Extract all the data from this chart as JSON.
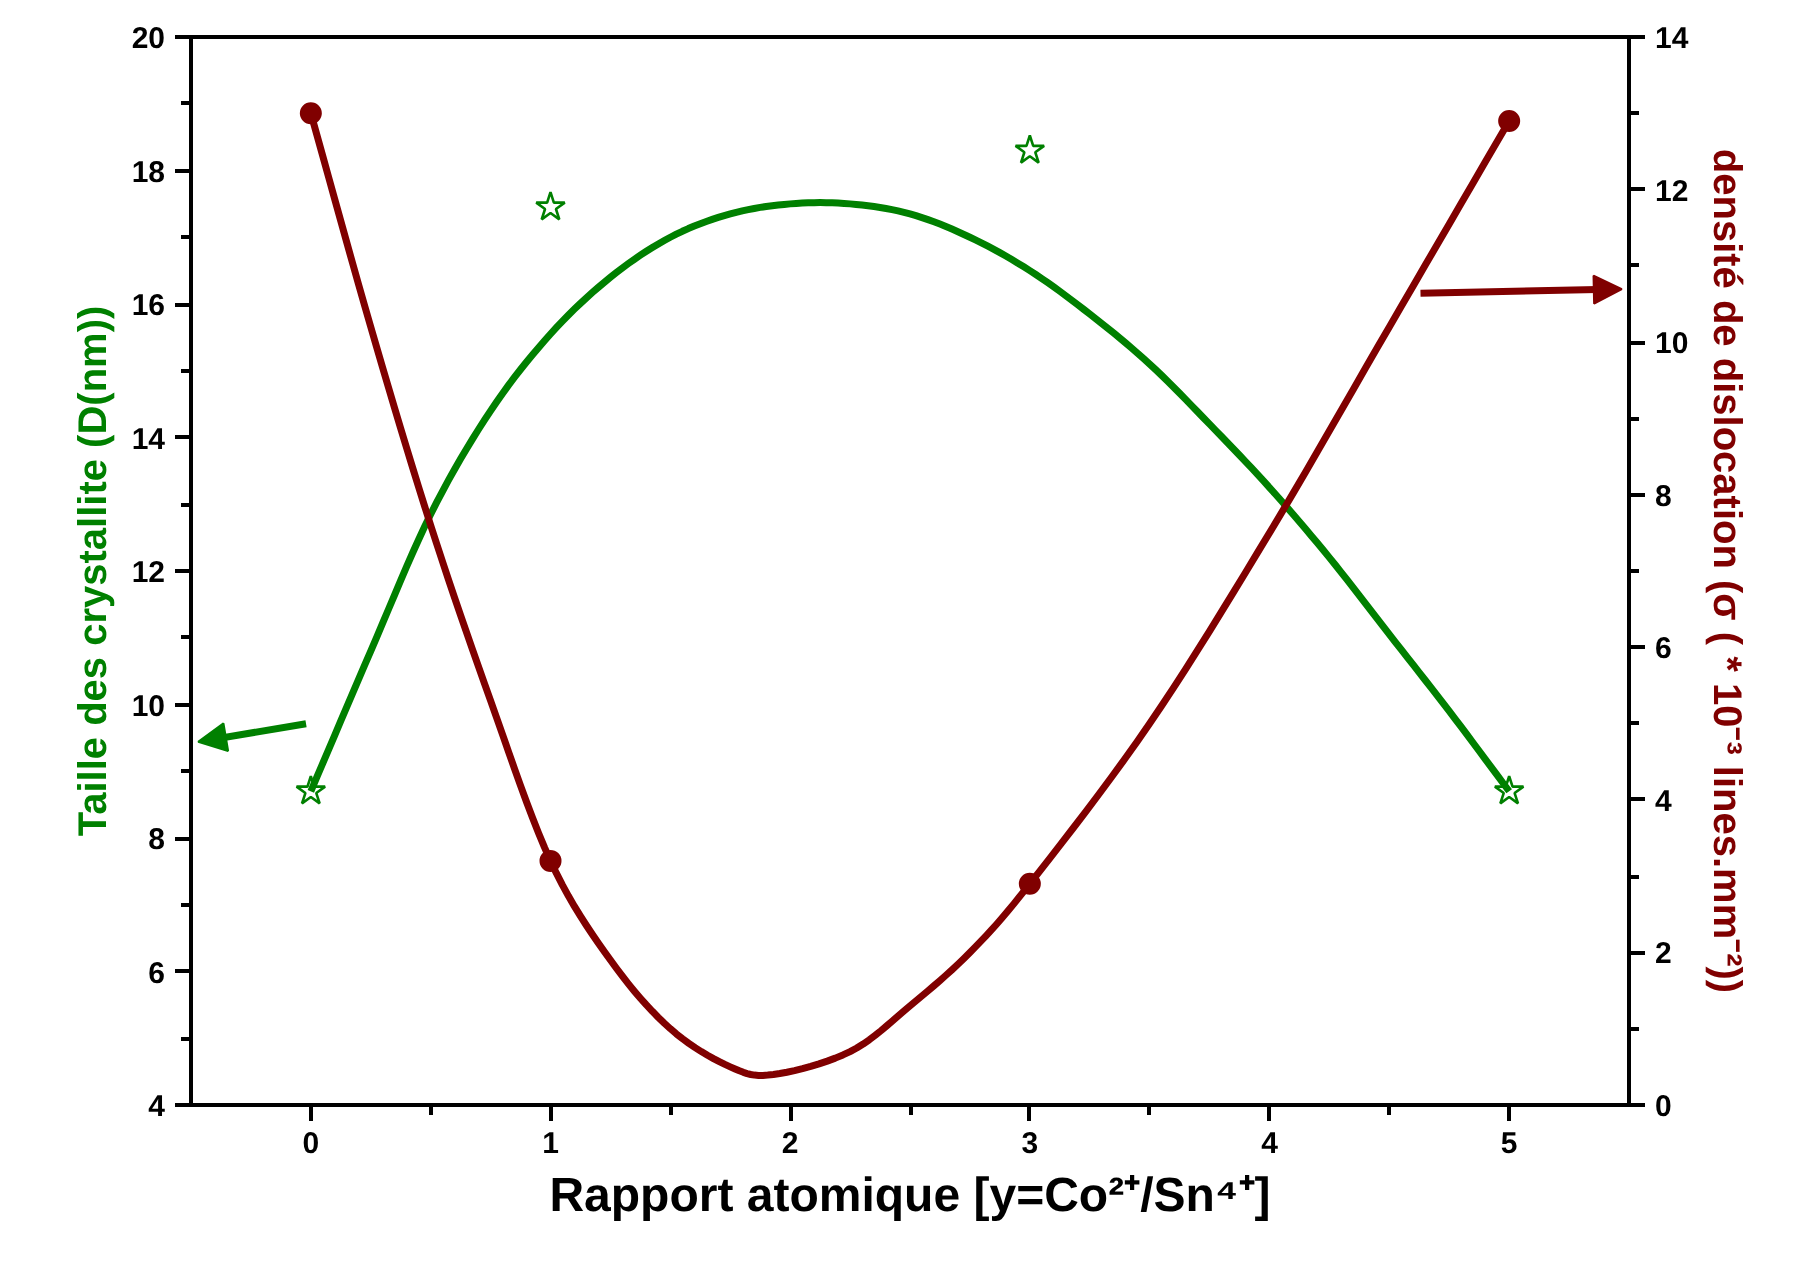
{
  "chart_data": {
    "type": "scatter",
    "xlabel": "Rapport atomique [y=Co²⁺/Sn⁴⁺]",
    "ylabel": "Taille des crystallite (D(nm))",
    "y2label": "densité de dislocation (σ ( * 10⁻³ lines.mm⁻²))",
    "xlim": [
      -0.5,
      5.5
    ],
    "xticks": [
      0,
      1,
      2,
      3,
      4,
      5
    ],
    "ylim": [
      4,
      20
    ],
    "yticks": [
      4,
      6,
      8,
      10,
      12,
      14,
      16,
      18,
      20
    ],
    "y2lim": [
      0,
      14
    ],
    "y2ticks": [
      0,
      2,
      4,
      6,
      8,
      10,
      12,
      14
    ],
    "grid": false,
    "series": [
      {
        "marker": "star",
        "color": "#008000",
        "x": [
          0,
          1,
          3,
          5
        ],
        "values": [
          8.7,
          17.45,
          18.3,
          8.7
        ]
      },
      {
        "type": "line",
        "marker": "none",
        "color": "#008000",
        "x": [
          0,
          0.25,
          0.5,
          0.75,
          1,
          1.25,
          1.5,
          1.75,
          2,
          2.25,
          2.5,
          2.75,
          3,
          3.25,
          3.5,
          3.75,
          4,
          4.25,
          4.5,
          4.75,
          5
        ],
        "values": [
          8.7,
          10.8,
          12.85,
          14.4,
          15.55,
          16.4,
          17.0,
          17.35,
          17.5,
          17.5,
          17.35,
          17.0,
          16.5,
          15.85,
          15.1,
          14.2,
          13.25,
          12.2,
          11.05,
          9.9,
          8.7
        ]
      },
      {
        "marker": "circle",
        "axis": "y2",
        "color": "#800000",
        "x": [
          0,
          1,
          3,
          5
        ],
        "values": [
          13.0,
          3.2,
          2.9,
          12.9
        ]
      },
      {
        "type": "line",
        "marker": "none",
        "axis": "y2",
        "color": "#800000",
        "x": [
          0,
          0.25,
          0.5,
          0.75,
          1,
          1.25,
          1.5,
          1.75,
          1.93,
          2.25,
          2.5,
          2.75,
          3,
          3.5,
          4,
          4.5,
          5
        ],
        "values": [
          13.0,
          10.2,
          7.6,
          5.3,
          3.2,
          1.9,
          1.0,
          0.5,
          0.4,
          0.7,
          1.3,
          2.0,
          2.9,
          5.0,
          7.5,
          10.2,
          12.9
        ]
      }
    ]
  }
}
